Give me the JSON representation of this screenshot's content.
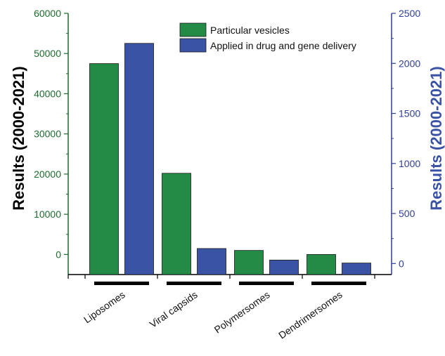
{
  "chart_data": {
    "type": "bar",
    "categories": [
      "Liposomes",
      "Viral capsids",
      "Polymersomes",
      "Dendrimersomes"
    ],
    "series": [
      {
        "name": "Particular vesicles",
        "axis": "left",
        "color": "#238b45",
        "values": [
          47500,
          20200,
          1000,
          0
        ]
      },
      {
        "name": "Applied in drug and gene delivery",
        "axis": "right",
        "color": "#3b53a4",
        "values": [
          2200,
          150,
          35,
          5
        ]
      }
    ],
    "ylabel": "Results (2000-2021)",
    "ylabel_right": "Results (2000-2021)",
    "ylim": [
      -5000,
      60000
    ],
    "ylim_right": [
      -110,
      2500
    ],
    "yticks": [
      0,
      10000,
      20000,
      30000,
      40000,
      50000,
      60000
    ],
    "yticks_right": [
      0,
      500,
      1000,
      1500,
      2000,
      2500
    ],
    "left_axis_color": "#1e6b2e",
    "right_axis_color": "#2f3f99",
    "legend_position": "top-right",
    "grid": false
  }
}
